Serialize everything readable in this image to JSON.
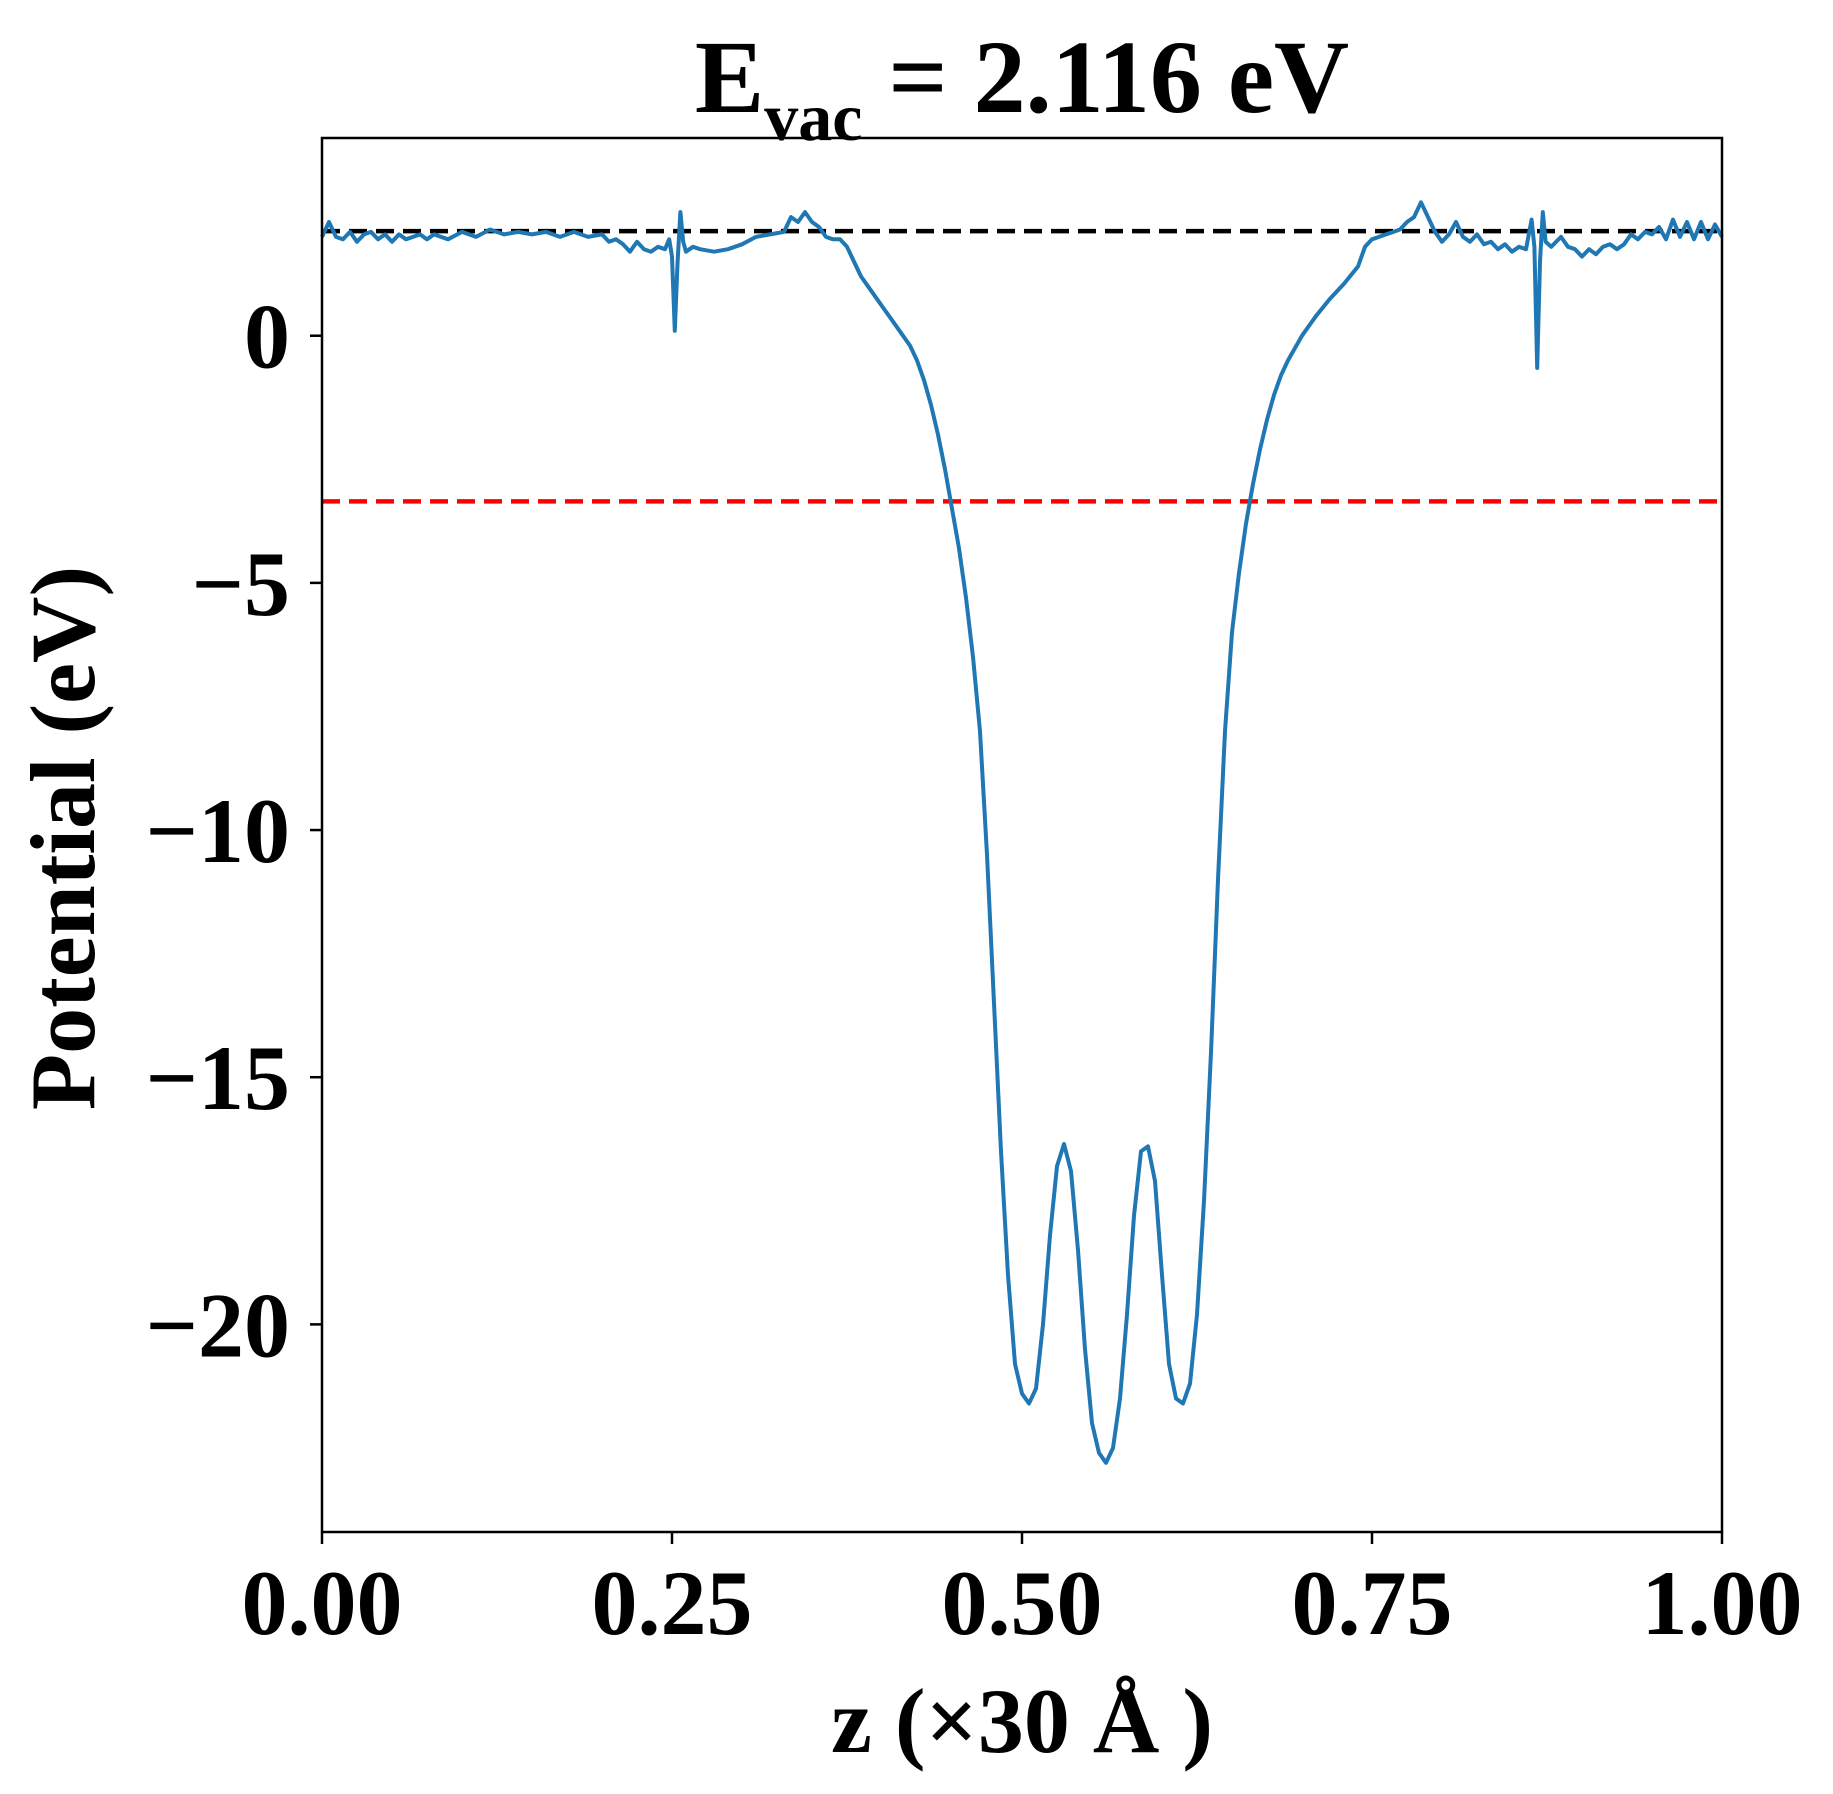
{
  "chart_data": {
    "type": "line",
    "title": {
      "prefix": "E",
      "subscript": "vac",
      "suffix": " = 2.116 eV"
    },
    "xlabel": "z (×30 Å )",
    "ylabel": "Potential (eV)",
    "xlim": [
      0.0,
      1.0
    ],
    "ylim": [
      -24.2,
      4.0
    ],
    "x_ticks": [
      0.0,
      0.25,
      0.5,
      0.75,
      1.0
    ],
    "x_tick_labels": [
      "0.00",
      "0.25",
      "0.50",
      "0.75",
      "1.00"
    ],
    "y_ticks": [
      0,
      -5,
      -10,
      -15,
      -20
    ],
    "y_tick_labels": [
      "0",
      "−5",
      "−10",
      "−15",
      "−20"
    ],
    "grid": false,
    "legend": "none",
    "reference_lines": [
      {
        "axis": "y",
        "value": 2.116,
        "color": "#000000",
        "style": "dashed"
      },
      {
        "axis": "y",
        "value": -3.35,
        "color": "#ff0000",
        "style": "dashed"
      }
    ],
    "series": [
      {
        "color": "#1f77b4",
        "points": [
          [
            0.0,
            2.0
          ],
          [
            0.005,
            2.3
          ],
          [
            0.01,
            2.0
          ],
          [
            0.015,
            1.95
          ],
          [
            0.02,
            2.1
          ],
          [
            0.025,
            1.9
          ],
          [
            0.03,
            2.05
          ],
          [
            0.035,
            2.1
          ],
          [
            0.04,
            1.95
          ],
          [
            0.045,
            2.05
          ],
          [
            0.05,
            1.9
          ],
          [
            0.055,
            2.05
          ],
          [
            0.06,
            1.95
          ],
          [
            0.065,
            2.0
          ],
          [
            0.07,
            2.05
          ],
          [
            0.075,
            1.95
          ],
          [
            0.08,
            2.05
          ],
          [
            0.09,
            1.95
          ],
          [
            0.1,
            2.1
          ],
          [
            0.11,
            2.0
          ],
          [
            0.12,
            2.15
          ],
          [
            0.13,
            2.05
          ],
          [
            0.14,
            2.1
          ],
          [
            0.15,
            2.05
          ],
          [
            0.16,
            2.1
          ],
          [
            0.17,
            2.0
          ],
          [
            0.18,
            2.1
          ],
          [
            0.19,
            2.0
          ],
          [
            0.2,
            2.05
          ],
          [
            0.205,
            1.9
          ],
          [
            0.21,
            1.95
          ],
          [
            0.215,
            1.85
          ],
          [
            0.22,
            1.7
          ],
          [
            0.225,
            1.9
          ],
          [
            0.23,
            1.75
          ],
          [
            0.235,
            1.7
          ],
          [
            0.24,
            1.8
          ],
          [
            0.245,
            1.75
          ],
          [
            0.248,
            1.95
          ],
          [
            0.25,
            1.6
          ],
          [
            0.252,
            0.1
          ],
          [
            0.254,
            1.5
          ],
          [
            0.256,
            2.5
          ],
          [
            0.258,
            1.9
          ],
          [
            0.26,
            1.7
          ],
          [
            0.265,
            1.8
          ],
          [
            0.27,
            1.75
          ],
          [
            0.28,
            1.7
          ],
          [
            0.29,
            1.75
          ],
          [
            0.3,
            1.85
          ],
          [
            0.31,
            2.0
          ],
          [
            0.32,
            2.05
          ],
          [
            0.33,
            2.1
          ],
          [
            0.335,
            2.4
          ],
          [
            0.34,
            2.3
          ],
          [
            0.345,
            2.5
          ],
          [
            0.35,
            2.3
          ],
          [
            0.355,
            2.2
          ],
          [
            0.36,
            2.0
          ],
          [
            0.365,
            1.95
          ],
          [
            0.37,
            1.95
          ],
          [
            0.375,
            1.8
          ],
          [
            0.38,
            1.5
          ],
          [
            0.385,
            1.2
          ],
          [
            0.39,
            1.0
          ],
          [
            0.395,
            0.8
          ],
          [
            0.4,
            0.6
          ],
          [
            0.41,
            0.2
          ],
          [
            0.42,
            -0.2
          ],
          [
            0.425,
            -0.5
          ],
          [
            0.43,
            -0.9
          ],
          [
            0.435,
            -1.4
          ],
          [
            0.44,
            -2.0
          ],
          [
            0.445,
            -2.7
          ],
          [
            0.45,
            -3.5
          ],
          [
            0.455,
            -4.3
          ],
          [
            0.46,
            -5.3
          ],
          [
            0.465,
            -6.5
          ],
          [
            0.47,
            -8.0
          ],
          [
            0.475,
            -10.5
          ],
          [
            0.48,
            -13.5
          ],
          [
            0.485,
            -16.5
          ],
          [
            0.49,
            -19.0
          ],
          [
            0.495,
            -20.8
          ],
          [
            0.5,
            -21.4
          ],
          [
            0.505,
            -21.6
          ],
          [
            0.51,
            -21.3
          ],
          [
            0.515,
            -20.0
          ],
          [
            0.52,
            -18.2
          ],
          [
            0.525,
            -16.8
          ],
          [
            0.53,
            -16.35
          ],
          [
            0.535,
            -16.9
          ],
          [
            0.54,
            -18.5
          ],
          [
            0.545,
            -20.5
          ],
          [
            0.55,
            -22.0
          ],
          [
            0.555,
            -22.6
          ],
          [
            0.56,
            -22.8
          ],
          [
            0.565,
            -22.5
          ],
          [
            0.57,
            -21.5
          ],
          [
            0.575,
            -19.8
          ],
          [
            0.58,
            -17.8
          ],
          [
            0.585,
            -16.5
          ],
          [
            0.59,
            -16.4
          ],
          [
            0.595,
            -17.1
          ],
          [
            0.6,
            -19.0
          ],
          [
            0.605,
            -20.8
          ],
          [
            0.61,
            -21.5
          ],
          [
            0.615,
            -21.6
          ],
          [
            0.62,
            -21.2
          ],
          [
            0.625,
            -19.8
          ],
          [
            0.63,
            -17.5
          ],
          [
            0.635,
            -14.5
          ],
          [
            0.64,
            -11.0
          ],
          [
            0.645,
            -8.0
          ],
          [
            0.65,
            -6.0
          ],
          [
            0.655,
            -4.8
          ],
          [
            0.66,
            -3.8
          ],
          [
            0.665,
            -3.0
          ],
          [
            0.67,
            -2.3
          ],
          [
            0.675,
            -1.7
          ],
          [
            0.68,
            -1.2
          ],
          [
            0.685,
            -0.8
          ],
          [
            0.69,
            -0.5
          ],
          [
            0.7,
            0.0
          ],
          [
            0.71,
            0.4
          ],
          [
            0.72,
            0.75
          ],
          [
            0.73,
            1.05
          ],
          [
            0.74,
            1.4
          ],
          [
            0.745,
            1.8
          ],
          [
            0.75,
            1.95
          ],
          [
            0.76,
            2.05
          ],
          [
            0.77,
            2.15
          ],
          [
            0.775,
            2.3
          ],
          [
            0.78,
            2.4
          ],
          [
            0.785,
            2.7
          ],
          [
            0.79,
            2.4
          ],
          [
            0.795,
            2.1
          ],
          [
            0.8,
            1.9
          ],
          [
            0.805,
            2.05
          ],
          [
            0.81,
            2.3
          ],
          [
            0.815,
            2.0
          ],
          [
            0.82,
            1.9
          ],
          [
            0.825,
            2.05
          ],
          [
            0.83,
            1.85
          ],
          [
            0.835,
            1.9
          ],
          [
            0.84,
            1.75
          ],
          [
            0.845,
            1.85
          ],
          [
            0.85,
            1.7
          ],
          [
            0.855,
            1.8
          ],
          [
            0.86,
            1.75
          ],
          [
            0.864,
            2.35
          ],
          [
            0.866,
            1.8
          ],
          [
            0.868,
            -0.65
          ],
          [
            0.87,
            1.5
          ],
          [
            0.872,
            2.5
          ],
          [
            0.874,
            1.9
          ],
          [
            0.878,
            1.8
          ],
          [
            0.885,
            2.0
          ],
          [
            0.89,
            1.8
          ],
          [
            0.895,
            1.75
          ],
          [
            0.9,
            1.6
          ],
          [
            0.905,
            1.75
          ],
          [
            0.91,
            1.65
          ],
          [
            0.915,
            1.8
          ],
          [
            0.92,
            1.85
          ],
          [
            0.925,
            1.75
          ],
          [
            0.93,
            1.85
          ],
          [
            0.935,
            2.05
          ],
          [
            0.94,
            1.95
          ],
          [
            0.945,
            2.1
          ],
          [
            0.95,
            2.05
          ],
          [
            0.955,
            2.2
          ],
          [
            0.96,
            1.95
          ],
          [
            0.965,
            2.35
          ],
          [
            0.97,
            2.0
          ],
          [
            0.975,
            2.3
          ],
          [
            0.98,
            1.95
          ],
          [
            0.985,
            2.3
          ],
          [
            0.99,
            1.95
          ],
          [
            0.995,
            2.25
          ],
          [
            1.0,
            2.0
          ]
        ]
      }
    ]
  }
}
